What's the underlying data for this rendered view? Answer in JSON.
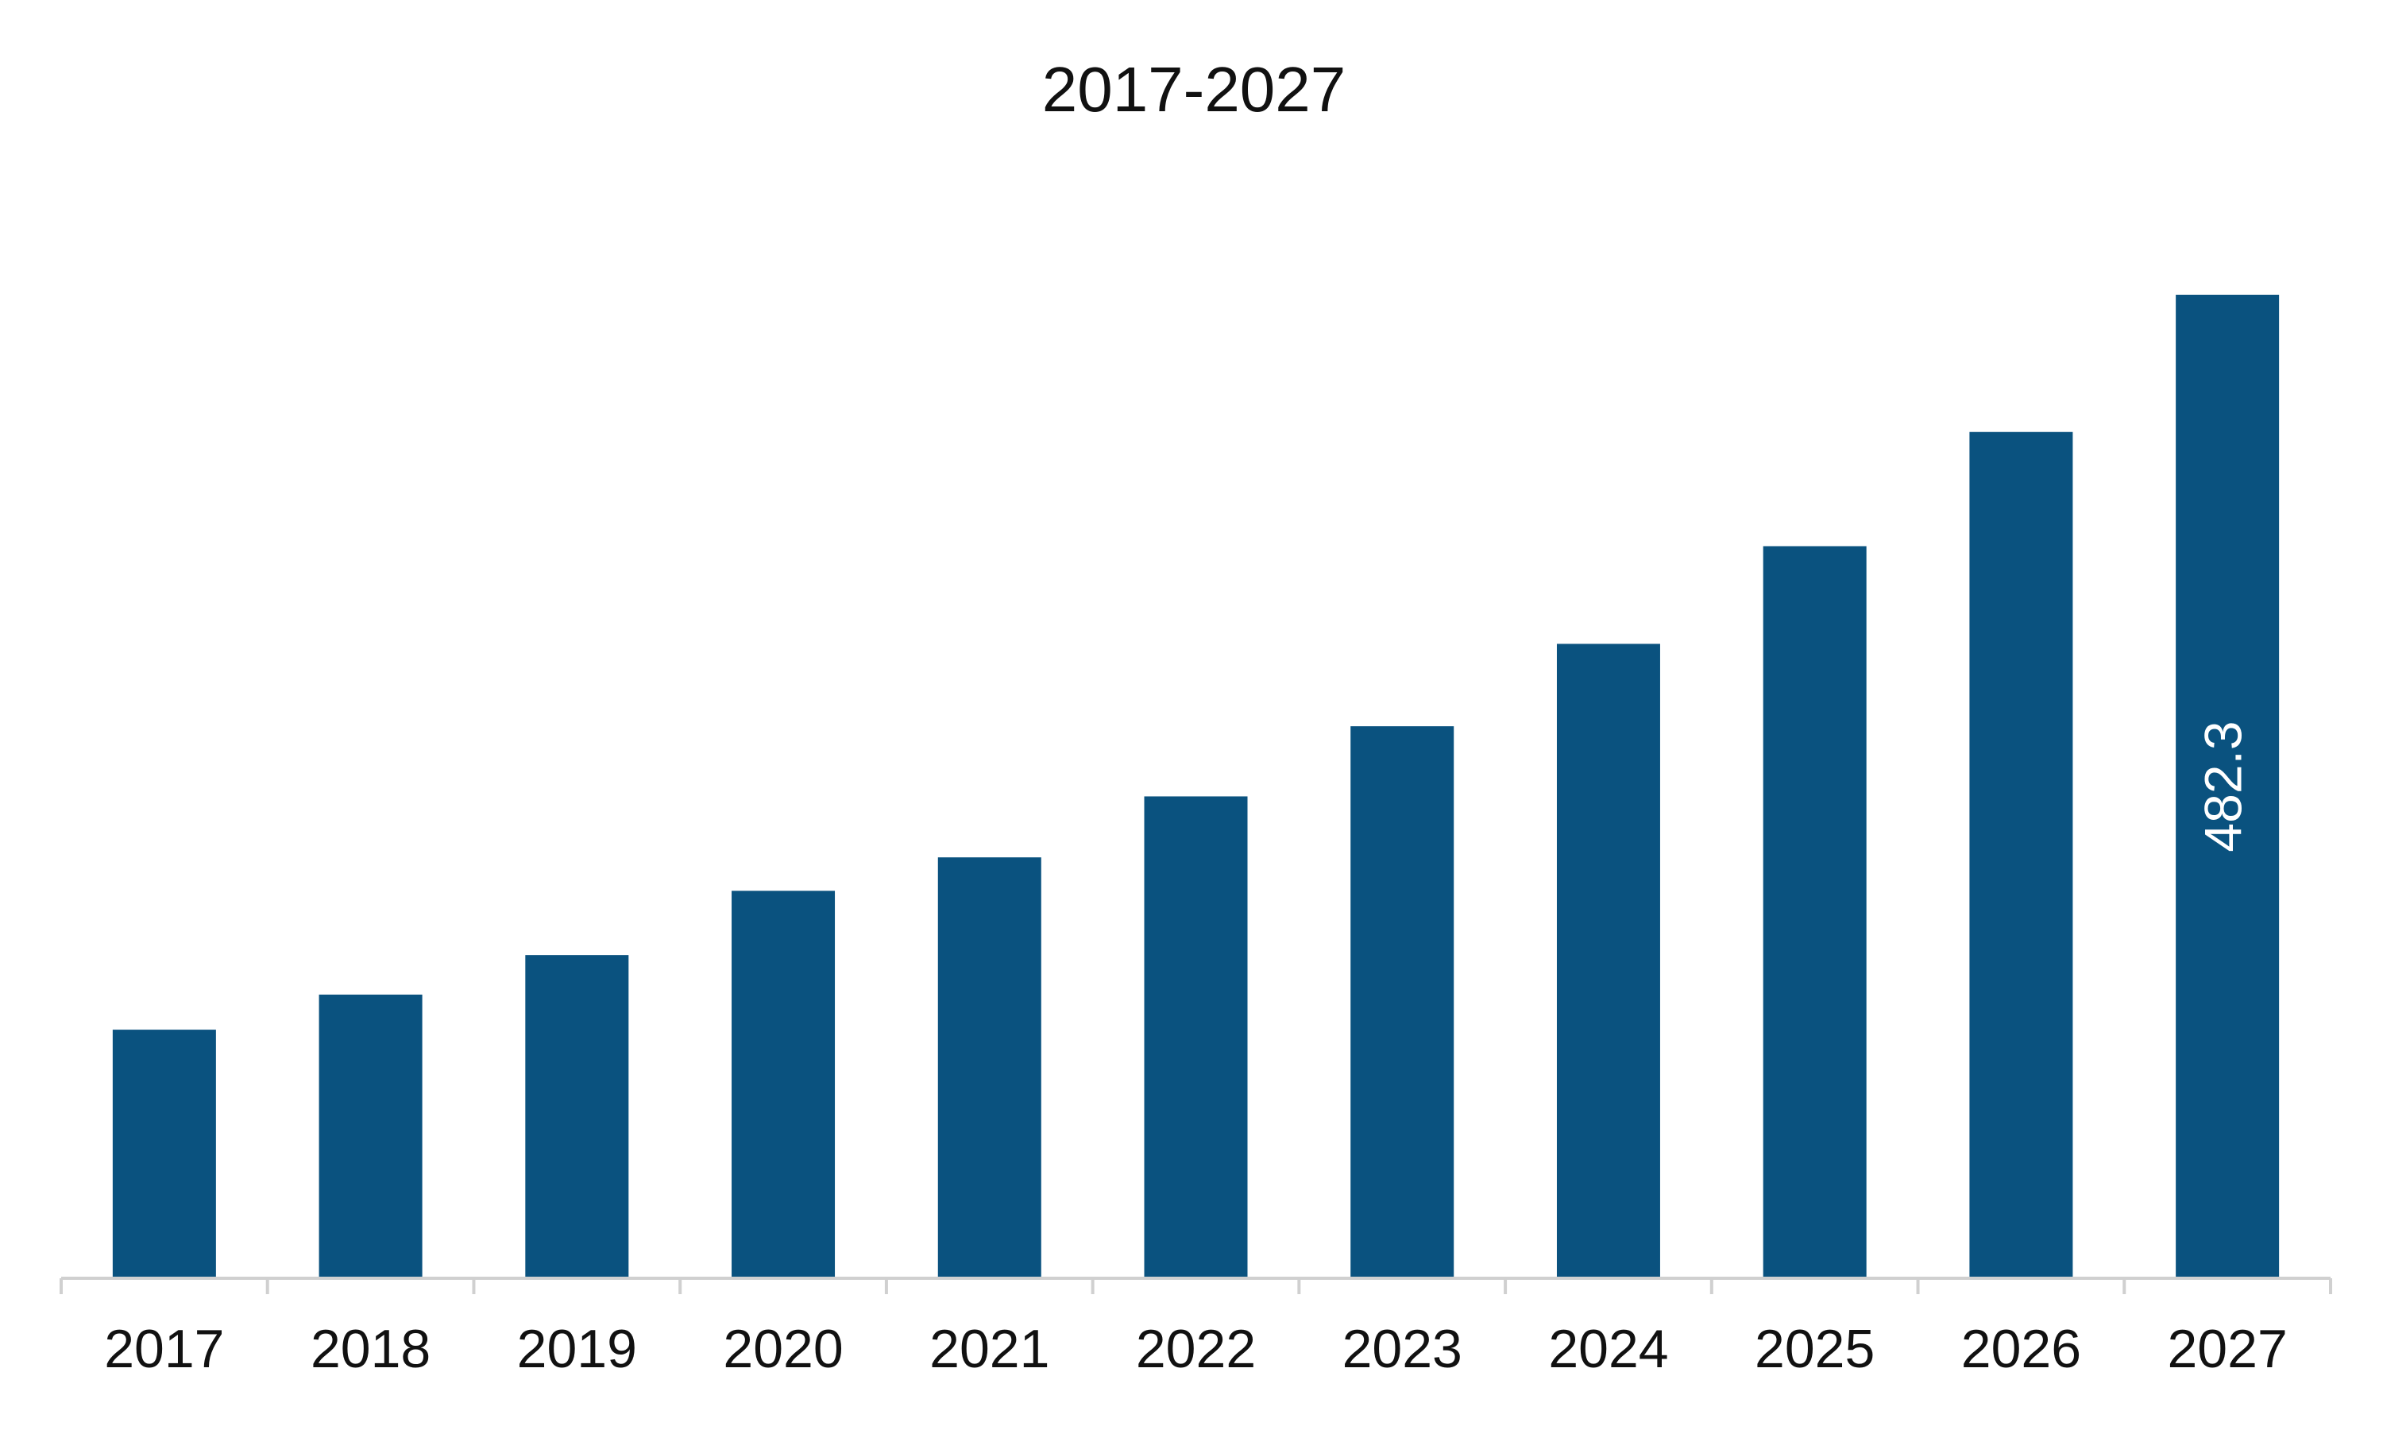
{
  "chart_data": {
    "type": "bar",
    "title": "2017-2027",
    "categories": [
      "2017",
      "2018",
      "2019",
      "2020",
      "2021",
      "2022",
      "2023",
      "2024",
      "2025",
      "2026",
      "2027"
    ],
    "values": [
      121.9,
      139.1,
      158.5,
      190.0,
      206.4,
      236.3,
      270.7,
      311.1,
      359.0,
      415.0,
      482.3
    ],
    "value_labels": [
      null,
      null,
      null,
      null,
      null,
      null,
      null,
      null,
      null,
      null,
      "482.3"
    ],
    "color": "#0a527f"
  }
}
